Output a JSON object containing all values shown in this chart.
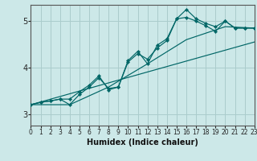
{
  "xlabel": "Humidex (Indice chaleur)",
  "bg_color": "#cce8e8",
  "grid_color": "#aacccc",
  "line_color": "#006666",
  "xlim": [
    0,
    23
  ],
  "ylim": [
    2.75,
    5.35
  ],
  "yticks": [
    3,
    4,
    5
  ],
  "xticks": [
    0,
    1,
    2,
    3,
    4,
    5,
    6,
    7,
    8,
    9,
    10,
    11,
    12,
    13,
    14,
    15,
    16,
    17,
    18,
    19,
    20,
    21,
    22,
    23
  ],
  "line1_x": [
    0,
    1,
    2,
    3,
    4,
    5,
    6,
    7,
    8,
    9,
    10,
    11,
    12,
    13,
    14,
    15,
    16,
    17,
    18,
    19,
    20,
    21,
    22,
    23
  ],
  "line1_y": [
    3.2,
    3.25,
    3.28,
    3.32,
    3.2,
    3.42,
    3.58,
    3.78,
    3.55,
    3.58,
    4.12,
    4.3,
    4.18,
    4.42,
    4.58,
    5.05,
    5.08,
    5.0,
    4.9,
    4.78,
    5.0,
    4.85,
    4.85,
    4.85
  ],
  "line2_x": [
    0,
    1,
    2,
    3,
    4,
    5,
    6,
    7,
    8,
    9,
    10,
    11,
    12,
    13,
    14,
    15,
    16,
    17,
    18,
    19,
    20,
    21,
    22,
    23
  ],
  "line2_y": [
    3.2,
    3.25,
    3.28,
    3.32,
    3.32,
    3.48,
    3.62,
    3.82,
    3.52,
    3.58,
    4.15,
    4.35,
    4.08,
    4.48,
    4.62,
    5.05,
    5.25,
    5.05,
    4.95,
    4.88,
    5.0,
    4.85,
    4.85,
    4.85
  ],
  "line3_x": [
    0,
    23
  ],
  "line3_y": [
    3.2,
    4.55
  ],
  "line4_x": [
    0,
    4,
    8,
    12,
    16,
    20,
    23
  ],
  "line4_y": [
    3.2,
    3.2,
    3.58,
    4.08,
    4.6,
    4.88,
    4.85
  ]
}
